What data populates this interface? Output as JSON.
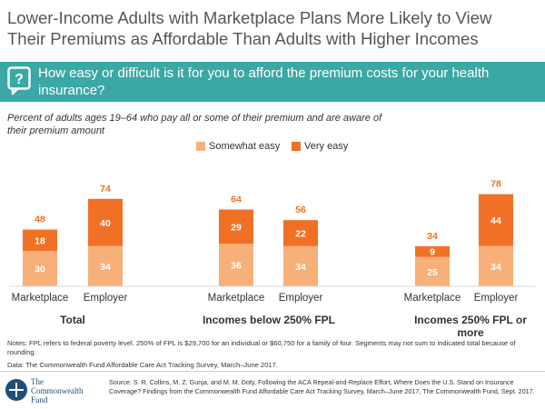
{
  "title": "Lower-Income Adults with Marketplace Plans More Likely to View Their Premiums as Affordable Than Adults with Higher Incomes",
  "question": "How easy or difficult is it for you to afford the premium costs for your health insurance?",
  "question_icon": "question-bubble-icon",
  "subtitle": "Percent of adults ages 19–64 who pay all or some of their premium and are aware of their premium amount",
  "colors": {
    "teal": "#3aa8a5",
    "somewhat_easy": "#f7b07a",
    "very_easy": "#f07026",
    "total_label": "#f07026"
  },
  "chart_data": {
    "type": "bar",
    "stacked": true,
    "title": "",
    "xlabel": "",
    "ylabel": "",
    "ylim": [
      0,
      80
    ],
    "legend": [
      "Somewhat easy",
      "Very easy"
    ],
    "groups": [
      {
        "label": "Total",
        "bars": [
          {
            "label": "Marketplace",
            "somewhat_easy": 30,
            "very_easy": 18,
            "total": 48
          },
          {
            "label": "Employer",
            "somewhat_easy": 34,
            "very_easy": 40,
            "total": 74
          }
        ]
      },
      {
        "label": "Incomes below 250% FPL",
        "bars": [
          {
            "label": "Marketplace",
            "somewhat_easy": 36,
            "very_easy": 29,
            "total": 64
          },
          {
            "label": "Employer",
            "somewhat_easy": 34,
            "very_easy": 22,
            "total": 56
          }
        ]
      },
      {
        "label": "Incomes 250% FPL or more",
        "bars": [
          {
            "label": "Marketplace",
            "somewhat_easy": 25,
            "very_easy": 9,
            "total": 34
          },
          {
            "label": "Employer",
            "somewhat_easy": 34,
            "very_easy": 44,
            "total": 78
          }
        ]
      }
    ]
  },
  "notes": "Notes: FPL refers to federal poverty level. 250% of FPL is $29,700 for an individual or $60,750 for a family of four. Segments may not sum to indicated total because of rounding.",
  "data_source": "Data: The Commonwealth Fund Affordable Care Act Tracking Survey, March–June 2017.",
  "logo": {
    "line1": "The",
    "line2": "Commonwealth",
    "line3": "Fund"
  },
  "source": "Source: S. R. Collins, M. Z. Gunja, and M. M. Doty, Following the ACA Repeal-and-Replace Effort, Where Does the U.S. Stand on Insurance Coverage? Findings from the Commonwealth Fund Affordable Care Act Tracking Survey, March–June 2017, The Commonwealth Fund, Sept. 2017."
}
